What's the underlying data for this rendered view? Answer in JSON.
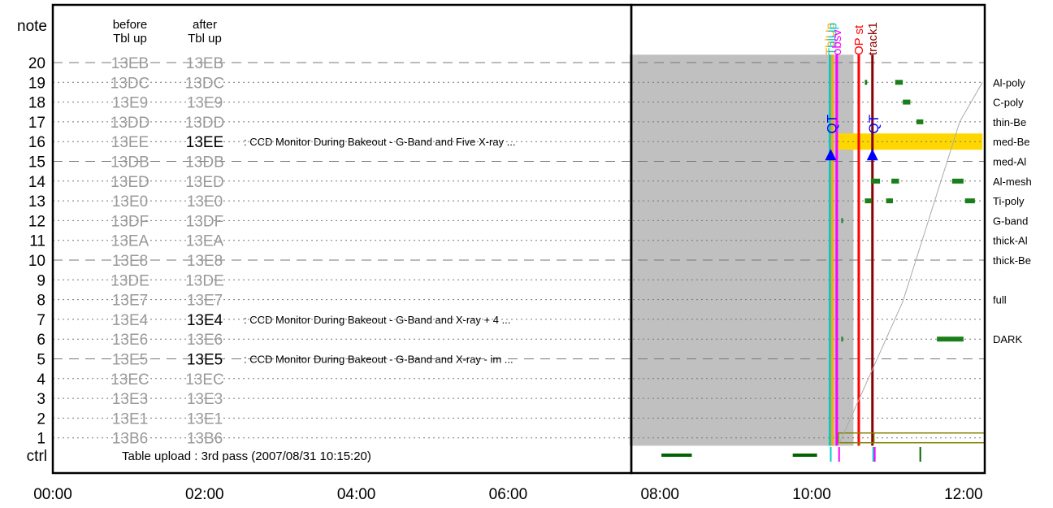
{
  "chart_data": {
    "type": "timeline",
    "x_ticks": [
      "00:00",
      "02:00",
      "04:00",
      "06:00",
      "08:00",
      "10:00",
      "12:00"
    ],
    "y_top_label": "note",
    "y_bottom_label": "ctrl",
    "rows": [
      {
        "n": "20",
        "before": "13EB",
        "after": "13EB",
        "after_black": false,
        "dash": "long",
        "filter": "",
        "desc": ""
      },
      {
        "n": "19",
        "before": "13DC",
        "after": "13DC",
        "after_black": false,
        "dash": "dot",
        "filter": "Al-poly",
        "desc": ""
      },
      {
        "n": "18",
        "before": "13E9",
        "after": "13E9",
        "after_black": false,
        "dash": "dot",
        "filter": "C-poly",
        "desc": ""
      },
      {
        "n": "17",
        "before": "13DD",
        "after": "13DD",
        "after_black": false,
        "dash": "dot",
        "filter": "thin-Be",
        "desc": ""
      },
      {
        "n": "16",
        "before": "13EE",
        "after": "13EE",
        "after_black": true,
        "dash": "dot",
        "filter": "med-Be",
        "desc": ": CCD Monitor During Bakeout - G-Band and Five X-ray ..."
      },
      {
        "n": "15",
        "before": "13DB",
        "after": "13DB",
        "after_black": false,
        "dash": "long",
        "filter": "med-Al",
        "desc": ""
      },
      {
        "n": "14",
        "before": "13ED",
        "after": "13ED",
        "after_black": false,
        "dash": "dot",
        "filter": "Al-mesh",
        "desc": ""
      },
      {
        "n": "13",
        "before": "13E0",
        "after": "13E0",
        "after_black": false,
        "dash": "dot",
        "filter": "Ti-poly",
        "desc": ""
      },
      {
        "n": "12",
        "before": "13DF",
        "after": "13DF",
        "after_black": false,
        "dash": "dot",
        "filter": "G-band",
        "desc": ""
      },
      {
        "n": "11",
        "before": "13EA",
        "after": "13EA",
        "after_black": false,
        "dash": "dot",
        "filter": "thick-Al",
        "desc": ""
      },
      {
        "n": "10",
        "before": "13E8",
        "after": "13E8",
        "after_black": false,
        "dash": "long",
        "filter": "thick-Be",
        "desc": ""
      },
      {
        "n": "9",
        "before": "13DE",
        "after": "13DE",
        "after_black": false,
        "dash": "dot",
        "filter": "",
        "desc": ""
      },
      {
        "n": "8",
        "before": "13E7",
        "after": "13E7",
        "after_black": false,
        "dash": "dot",
        "filter": "full",
        "desc": ""
      },
      {
        "n": "7",
        "before": "13E4",
        "after": "13E4",
        "after_black": true,
        "dash": "dot",
        "filter": "",
        "desc": ": CCD Monitor During Bakeout - G-Band and X-ray + 4 ..."
      },
      {
        "n": "6",
        "before": "13E6",
        "after": "13E6",
        "after_black": false,
        "dash": "dot",
        "filter": "DARK",
        "desc": ""
      },
      {
        "n": "5",
        "before": "13E5",
        "after": "13E5",
        "after_black": true,
        "dash": "long",
        "filter": "",
        "desc": ": CCD Monitor During Bakeout - G-Band and X-ray - im ..."
      },
      {
        "n": "4",
        "before": "13EC",
        "after": "13EC",
        "after_black": false,
        "dash": "dot",
        "filter": "",
        "desc": ""
      },
      {
        "n": "3",
        "before": "13E3",
        "after": "13E3",
        "after_black": false,
        "dash": "dot",
        "filter": "",
        "desc": ""
      },
      {
        "n": "2",
        "before": "13E1",
        "after": "13E1",
        "after_black": false,
        "dash": "dot",
        "filter": "",
        "desc": ""
      },
      {
        "n": "1",
        "before": "13B6",
        "after": "13B6",
        "after_black": false,
        "dash": "dot",
        "filter": "",
        "desc": ""
      }
    ],
    "col_before_header": [
      "before",
      "Tbl up"
    ],
    "col_after_header": [
      "after",
      "Tbl up"
    ],
    "ctrl_text": "Table upload : 3rd pass (2007/08/31 10:15:20)",
    "gray_region": {
      "x_start": 7.6,
      "x_end": 10.55,
      "y_top": 20.4,
      "y_bottom": 0.6,
      "color": "#c0c0c0"
    },
    "medbe_bar": {
      "x_start": 10.35,
      "x_end": 12.25,
      "row": 16,
      "color": "#ffd700"
    },
    "vlines": [
      {
        "x": 10.24,
        "color": "#00cccc",
        "label": "TblUp",
        "label_color": "#ffa500"
      },
      {
        "x": 10.27,
        "color": "#ffa500",
        "label": "TblUp",
        "label_color": "#00cccc"
      },
      {
        "x": 10.33,
        "color": "#ff00ff",
        "label": "obsv",
        "label_color": "#ff00ff"
      },
      {
        "x": 10.62,
        "color": "#ff0000",
        "label": "OP st",
        "label_color": "#ff0000"
      },
      {
        "x": 10.8,
        "color": "#8b0000",
        "label": "track1",
        "label_color": "#8b0000"
      }
    ],
    "qt_markers": [
      {
        "x": 10.25,
        "label": "QT",
        "color": "#0000ff"
      },
      {
        "x": 10.8,
        "label": "QT",
        "color": "#0000ff"
      }
    ],
    "green_marks": [
      {
        "row": 19,
        "x": 10.7,
        "w": 0.03
      },
      {
        "row": 19,
        "x": 11.1,
        "w": 0.1
      },
      {
        "row": 18,
        "x": 11.2,
        "w": 0.1
      },
      {
        "row": 17,
        "x": 11.38,
        "w": 0.09
      },
      {
        "row": 14,
        "x": 10.78,
        "w": 0.12
      },
      {
        "row": 14,
        "x": 11.05,
        "w": 0.1
      },
      {
        "row": 14,
        "x": 11.85,
        "w": 0.15
      },
      {
        "row": 13,
        "x": 10.7,
        "w": 0.09
      },
      {
        "row": 13,
        "x": 10.98,
        "w": 0.09
      },
      {
        "row": 13,
        "x": 12.02,
        "w": 0.13
      },
      {
        "row": 12,
        "x": 10.39,
        "w": 0.02
      },
      {
        "row": 6,
        "x": 10.39,
        "w": 0.02
      },
      {
        "row": 6,
        "x": 11.65,
        "w": 0.35
      }
    ],
    "ctrl_marks": [
      {
        "x": 8.02,
        "w": 0.4,
        "color": "#006400"
      },
      {
        "x": 9.75,
        "w": 0.32,
        "color": "#006400"
      },
      {
        "x": 10.24,
        "w": 0.02,
        "color": "#00cccc"
      },
      {
        "x": 10.35,
        "w": 0.02,
        "color": "#ff00ff"
      },
      {
        "x": 10.8,
        "w": 0.02,
        "color": "#00cccc"
      },
      {
        "x": 10.82,
        "w": 0.02,
        "color": "#ff00ff"
      },
      {
        "x": 11.42,
        "w": 0.02,
        "color": "#006400"
      }
    ],
    "temp_curve": [
      [
        10.35,
        0.6
      ],
      [
        11.2,
        7.9
      ],
      [
        11.95,
        17.0
      ],
      [
        12.25,
        19.0
      ]
    ],
    "olive_boxes": [
      [
        10.35,
        10.82
      ]
    ]
  }
}
